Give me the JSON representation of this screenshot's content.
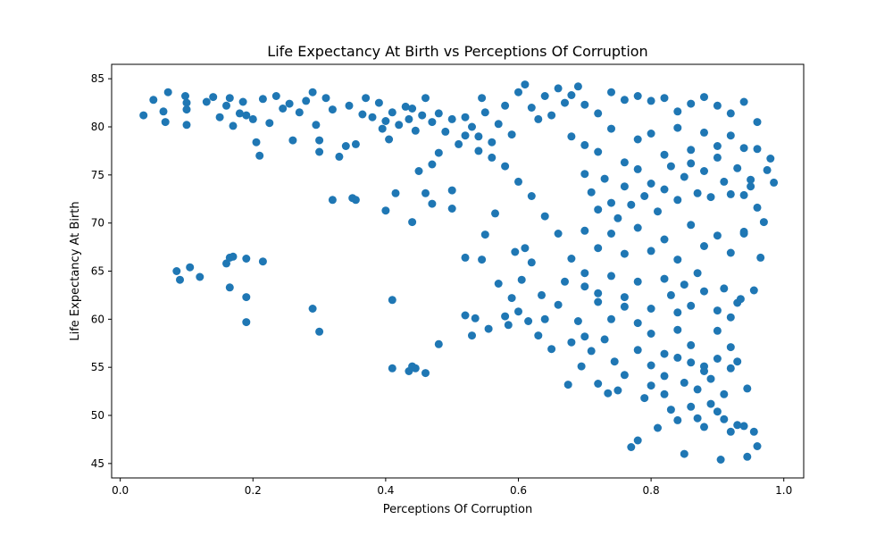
{
  "chart_data": {
    "type": "scatter",
    "title": "Life Expectancy At Birth vs Perceptions Of Corruption",
    "xlabel": "Perceptions Of Corruption",
    "ylabel": "Life Expectancy At Birth",
    "xlim": [
      -0.013,
      1.03
    ],
    "ylim": [
      43.5,
      86.5
    ],
    "xticks": [
      0.0,
      0.2,
      0.4,
      0.6,
      0.8,
      1.0
    ],
    "xtick_labels": [
      "0.0",
      "0.2",
      "0.4",
      "0.6",
      "0.8",
      "1.0"
    ],
    "yticks": [
      45,
      50,
      55,
      60,
      65,
      70,
      75,
      80,
      85
    ],
    "ytick_labels": [
      "45",
      "50",
      "55",
      "60",
      "65",
      "70",
      "75",
      "80",
      "85"
    ],
    "grid": false,
    "marker_color": "#1f77b4",
    "series": [
      {
        "points": [
          [
            0.035,
            81.2
          ],
          [
            0.05,
            82.8
          ],
          [
            0.065,
            81.6
          ],
          [
            0.068,
            80.5
          ],
          [
            0.072,
            83.6
          ],
          [
            0.098,
            83.2
          ],
          [
            0.1,
            82.5
          ],
          [
            0.1,
            81.8
          ],
          [
            0.1,
            80.2
          ],
          [
            0.13,
            82.6
          ],
          [
            0.14,
            83.1
          ],
          [
            0.15,
            81.0
          ],
          [
            0.16,
            82.2
          ],
          [
            0.165,
            83.0
          ],
          [
            0.17,
            80.1
          ],
          [
            0.18,
            81.4
          ],
          [
            0.185,
            82.6
          ],
          [
            0.19,
            81.2
          ],
          [
            0.2,
            80.8
          ],
          [
            0.205,
            78.4
          ],
          [
            0.21,
            77.0
          ],
          [
            0.215,
            82.9
          ],
          [
            0.225,
            80.4
          ],
          [
            0.235,
            83.2
          ],
          [
            0.245,
            81.9
          ],
          [
            0.255,
            82.4
          ],
          [
            0.26,
            78.6
          ],
          [
            0.27,
            81.5
          ],
          [
            0.28,
            82.7
          ],
          [
            0.29,
            83.6
          ],
          [
            0.295,
            80.2
          ],
          [
            0.3,
            78.6
          ],
          [
            0.3,
            77.4
          ],
          [
            0.31,
            83.0
          ],
          [
            0.32,
            81.8
          ],
          [
            0.33,
            76.9
          ],
          [
            0.34,
            78.0
          ],
          [
            0.345,
            82.2
          ],
          [
            0.355,
            78.2
          ],
          [
            0.365,
            81.3
          ],
          [
            0.37,
            83.0
          ],
          [
            0.38,
            81.0
          ],
          [
            0.39,
            82.5
          ],
          [
            0.395,
            79.8
          ],
          [
            0.4,
            80.6
          ],
          [
            0.405,
            78.7
          ],
          [
            0.41,
            81.5
          ],
          [
            0.42,
            80.2
          ],
          [
            0.43,
            82.1
          ],
          [
            0.435,
            80.8
          ],
          [
            0.44,
            81.9
          ],
          [
            0.445,
            79.6
          ],
          [
            0.455,
            81.2
          ],
          [
            0.46,
            83.0
          ],
          [
            0.47,
            80.5
          ],
          [
            0.48,
            81.4
          ],
          [
            0.49,
            79.5
          ],
          [
            0.5,
            80.8
          ],
          [
            0.51,
            78.2
          ],
          [
            0.52,
            81.0
          ],
          [
            0.53,
            80.0
          ],
          [
            0.54,
            79.0
          ],
          [
            0.545,
            83.0
          ],
          [
            0.55,
            81.5
          ],
          [
            0.56,
            78.4
          ],
          [
            0.57,
            80.3
          ],
          [
            0.58,
            82.2
          ],
          [
            0.59,
            79.2
          ],
          [
            0.6,
            83.6
          ],
          [
            0.61,
            84.4
          ],
          [
            0.62,
            82.0
          ],
          [
            0.63,
            80.8
          ],
          [
            0.64,
            83.2
          ],
          [
            0.65,
            81.2
          ],
          [
            0.66,
            84.0
          ],
          [
            0.67,
            82.5
          ],
          [
            0.68,
            83.3
          ],
          [
            0.69,
            84.2
          ],
          [
            0.7,
            82.3
          ],
          [
            0.72,
            81.4
          ],
          [
            0.74,
            83.6
          ],
          [
            0.76,
            82.8
          ],
          [
            0.78,
            83.2
          ],
          [
            0.8,
            82.7
          ],
          [
            0.82,
            83.0
          ],
          [
            0.84,
            81.6
          ],
          [
            0.86,
            82.4
          ],
          [
            0.88,
            83.1
          ],
          [
            0.9,
            82.2
          ],
          [
            0.92,
            81.4
          ],
          [
            0.94,
            82.6
          ],
          [
            0.96,
            80.5
          ],
          [
            0.085,
            65.0
          ],
          [
            0.09,
            64.1
          ],
          [
            0.105,
            65.4
          ],
          [
            0.12,
            64.4
          ],
          [
            0.16,
            65.8
          ],
          [
            0.165,
            66.4
          ],
          [
            0.17,
            66.5
          ],
          [
            0.19,
            66.3
          ],
          [
            0.215,
            66.0
          ],
          [
            0.165,
            63.3
          ],
          [
            0.19,
            62.3
          ],
          [
            0.19,
            59.7
          ],
          [
            0.29,
            61.1
          ],
          [
            0.3,
            58.7
          ],
          [
            0.32,
            72.4
          ],
          [
            0.35,
            72.6
          ],
          [
            0.355,
            72.4
          ],
          [
            0.4,
            71.3
          ],
          [
            0.41,
            62.0
          ],
          [
            0.41,
            54.9
          ],
          [
            0.415,
            73.1
          ],
          [
            0.435,
            54.6
          ],
          [
            0.44,
            55.1
          ],
          [
            0.445,
            54.9
          ],
          [
            0.46,
            54.4
          ],
          [
            0.44,
            70.1
          ],
          [
            0.45,
            75.4
          ],
          [
            0.46,
            73.1
          ],
          [
            0.47,
            72.0
          ],
          [
            0.48,
            57.4
          ],
          [
            0.5,
            71.5
          ],
          [
            0.52,
            66.4
          ],
          [
            0.52,
            60.4
          ],
          [
            0.53,
            58.3
          ],
          [
            0.535,
            60.1
          ],
          [
            0.545,
            66.2
          ],
          [
            0.55,
            68.8
          ],
          [
            0.555,
            59.0
          ],
          [
            0.565,
            71.0
          ],
          [
            0.57,
            63.7
          ],
          [
            0.58,
            60.3
          ],
          [
            0.585,
            59.4
          ],
          [
            0.59,
            62.2
          ],
          [
            0.595,
            67.0
          ],
          [
            0.6,
            60.8
          ],
          [
            0.605,
            64.1
          ],
          [
            0.61,
            67.4
          ],
          [
            0.615,
            59.8
          ],
          [
            0.62,
            65.9
          ],
          [
            0.63,
            58.3
          ],
          [
            0.635,
            62.5
          ],
          [
            0.64,
            60.0
          ],
          [
            0.65,
            56.9
          ],
          [
            0.66,
            61.5
          ],
          [
            0.67,
            63.9
          ],
          [
            0.675,
            53.2
          ],
          [
            0.68,
            57.6
          ],
          [
            0.69,
            59.8
          ],
          [
            0.695,
            55.1
          ],
          [
            0.7,
            58.2
          ],
          [
            0.71,
            56.7
          ],
          [
            0.72,
            53.3
          ],
          [
            0.73,
            57.9
          ],
          [
            0.735,
            52.3
          ],
          [
            0.745,
            55.6
          ],
          [
            0.75,
            52.6
          ],
          [
            0.76,
            54.2
          ],
          [
            0.77,
            46.7
          ],
          [
            0.78,
            47.4
          ],
          [
            0.79,
            51.8
          ],
          [
            0.8,
            53.1
          ],
          [
            0.81,
            48.7
          ],
          [
            0.82,
            52.2
          ],
          [
            0.83,
            50.6
          ],
          [
            0.84,
            49.5
          ],
          [
            0.85,
            46.0
          ],
          [
            0.86,
            50.9
          ],
          [
            0.87,
            49.7
          ],
          [
            0.88,
            48.8
          ],
          [
            0.89,
            51.2
          ],
          [
            0.9,
            50.4
          ],
          [
            0.905,
            45.4
          ],
          [
            0.91,
            49.6
          ],
          [
            0.92,
            48.3
          ],
          [
            0.93,
            49.0
          ],
          [
            0.94,
            48.9
          ],
          [
            0.945,
            45.7
          ],
          [
            0.955,
            48.3
          ],
          [
            0.96,
            46.8
          ],
          [
            0.945,
            52.8
          ],
          [
            0.93,
            55.6
          ],
          [
            0.92,
            57.1
          ],
          [
            0.955,
            63.0
          ],
          [
            0.965,
            66.4
          ],
          [
            0.97,
            70.1
          ],
          [
            0.975,
            75.5
          ],
          [
            0.98,
            76.7
          ],
          [
            0.985,
            74.2
          ],
          [
            0.96,
            77.7
          ],
          [
            0.95,
            73.8
          ],
          [
            0.94,
            68.9
          ],
          [
            0.935,
            62.1
          ],
          [
            0.92,
            60.2
          ],
          [
            0.9,
            58.8
          ],
          [
            0.88,
            55.1
          ],
          [
            0.86,
            57.3
          ],
          [
            0.84,
            58.9
          ],
          [
            0.82,
            56.4
          ],
          [
            0.8,
            58.5
          ],
          [
            0.78,
            59.6
          ],
          [
            0.76,
            61.3
          ],
          [
            0.74,
            60.0
          ],
          [
            0.72,
            62.7
          ],
          [
            0.7,
            64.8
          ],
          [
            0.68,
            66.3
          ],
          [
            0.66,
            68.9
          ],
          [
            0.64,
            70.7
          ],
          [
            0.62,
            72.8
          ],
          [
            0.6,
            74.3
          ],
          [
            0.58,
            75.9
          ],
          [
            0.56,
            76.8
          ],
          [
            0.54,
            77.5
          ],
          [
            0.52,
            79.1
          ],
          [
            0.5,
            73.4
          ],
          [
            0.48,
            77.3
          ],
          [
            0.47,
            76.1
          ],
          [
            0.68,
            79.0
          ],
          [
            0.7,
            78.1
          ],
          [
            0.72,
            77.4
          ],
          [
            0.74,
            79.8
          ],
          [
            0.76,
            76.3
          ],
          [
            0.78,
            78.7
          ],
          [
            0.8,
            79.3
          ],
          [
            0.82,
            77.1
          ],
          [
            0.84,
            79.9
          ],
          [
            0.86,
            77.6
          ],
          [
            0.88,
            79.4
          ],
          [
            0.9,
            78.0
          ],
          [
            0.92,
            79.1
          ],
          [
            0.94,
            77.8
          ],
          [
            0.7,
            75.1
          ],
          [
            0.71,
            73.2
          ],
          [
            0.72,
            71.4
          ],
          [
            0.73,
            74.6
          ],
          [
            0.74,
            72.1
          ],
          [
            0.75,
            70.5
          ],
          [
            0.76,
            73.8
          ],
          [
            0.77,
            71.9
          ],
          [
            0.78,
            75.6
          ],
          [
            0.79,
            72.8
          ],
          [
            0.8,
            74.1
          ],
          [
            0.81,
            71.2
          ],
          [
            0.82,
            73.5
          ],
          [
            0.83,
            75.9
          ],
          [
            0.84,
            72.4
          ],
          [
            0.85,
            74.8
          ],
          [
            0.86,
            76.2
          ],
          [
            0.87,
            73.1
          ],
          [
            0.88,
            75.4
          ],
          [
            0.89,
            72.7
          ],
          [
            0.9,
            76.8
          ],
          [
            0.91,
            74.3
          ],
          [
            0.92,
            73.0
          ],
          [
            0.93,
            75.7
          ],
          [
            0.94,
            72.9
          ],
          [
            0.95,
            74.5
          ],
          [
            0.96,
            71.6
          ],
          [
            0.7,
            69.2
          ],
          [
            0.72,
            67.4
          ],
          [
            0.74,
            68.9
          ],
          [
            0.76,
            66.8
          ],
          [
            0.78,
            69.5
          ],
          [
            0.8,
            67.1
          ],
          [
            0.82,
            68.3
          ],
          [
            0.84,
            66.2
          ],
          [
            0.86,
            69.8
          ],
          [
            0.88,
            67.6
          ],
          [
            0.9,
            68.7
          ],
          [
            0.92,
            66.9
          ],
          [
            0.94,
            69.1
          ],
          [
            0.7,
            63.4
          ],
          [
            0.72,
            61.8
          ],
          [
            0.74,
            64.5
          ],
          [
            0.76,
            62.3
          ],
          [
            0.78,
            63.9
          ],
          [
            0.8,
            61.1
          ],
          [
            0.82,
            64.2
          ],
          [
            0.83,
            62.5
          ],
          [
            0.84,
            60.7
          ],
          [
            0.85,
            63.6
          ],
          [
            0.86,
            61.4
          ],
          [
            0.87,
            64.8
          ],
          [
            0.88,
            62.9
          ],
          [
            0.9,
            60.9
          ],
          [
            0.91,
            63.2
          ],
          [
            0.93,
            61.7
          ],
          [
            0.78,
            56.8
          ],
          [
            0.8,
            55.2
          ],
          [
            0.82,
            54.1
          ],
          [
            0.84,
            56.0
          ],
          [
            0.85,
            53.4
          ],
          [
            0.86,
            55.5
          ],
          [
            0.87,
            52.7
          ],
          [
            0.88,
            54.6
          ],
          [
            0.89,
            53.8
          ],
          [
            0.9,
            55.9
          ],
          [
            0.91,
            52.2
          ],
          [
            0.92,
            54.9
          ]
        ]
      }
    ]
  }
}
